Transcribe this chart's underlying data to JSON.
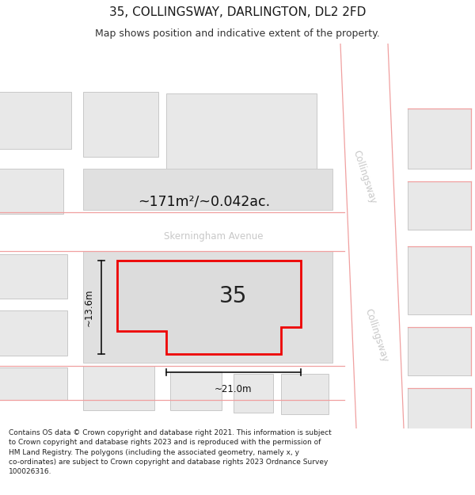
{
  "title": "35, COLLINGSWAY, DARLINGTON, DL2 2FD",
  "subtitle": "Map shows position and indicative extent of the property.",
  "footer_line1": "Contains OS data © Crown copyright and database right 2021. This information is subject",
  "footer_line2": "to Crown copyright and database rights 2023 and is reproduced with the permission of",
  "footer_line3": "HM Land Registry. The polygons (including the associated geometry, namely x, y",
  "footer_line4": "co-ordinates) are subject to Crown copyright and database rights 2023 Ordnance Survey",
  "footer_line5": "100026316.",
  "area_label": "~171m²/~0.042ac.",
  "number_label": "35",
  "width_label": "~21.0m",
  "height_label": "~13.6m",
  "street_label_top": "Collingsway",
  "street_label_bottom": "Collingsway",
  "street_label_mid": "Skerningham Avenue",
  "bg_color": "#ffffff",
  "map_bg": "#f2f2f2",
  "building_fill": "#e8e8e8",
  "building_stroke": "#cccccc",
  "highlight_fill": "#dcdcdc",
  "highlight_stroke": "#ee0000",
  "road_color": "#ffffff",
  "road_line_color": "#f0a0a0",
  "road_label_color": "#c8c8c8",
  "dim_color": "#111111"
}
